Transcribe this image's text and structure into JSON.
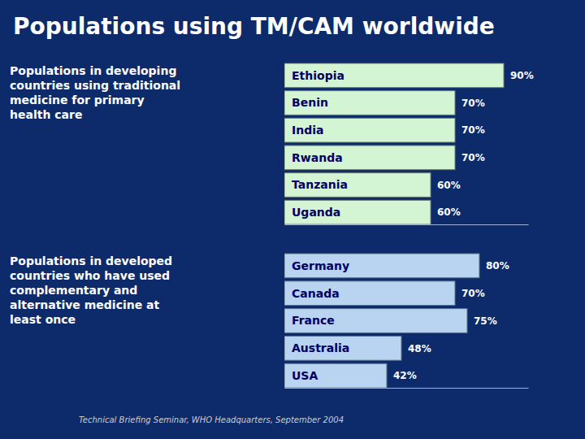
{
  "chart_data": [
    {
      "type": "bar",
      "orientation": "horizontal",
      "title": "Populations using TM/CAM worldwide",
      "subtitle": "Populations in developing\ncountries using traditional\nmedicine for primary\nhealth care",
      "categories": [
        "Ethiopia",
        "Benin",
        "India",
        "Rwanda",
        "Tanzania",
        "Uganda"
      ],
      "values": [
        90,
        70,
        70,
        70,
        60,
        60
      ],
      "value_labels": [
        "90%",
        "70%",
        "70%",
        "70%",
        "60%",
        "60%"
      ],
      "data_labels": true,
      "color": "#d4f5d4",
      "xlim": [
        0,
        100
      ],
      "tick_labels": false
    },
    {
      "type": "bar",
      "orientation": "horizontal",
      "subtitle": "Populations in developed\ncountries who have used\ncomplementary and\nalternative medicine at\nleast once",
      "categories": [
        "Germany",
        "Canada",
        "France",
        "Australia",
        "USA"
      ],
      "values": [
        80,
        70,
        75,
        48,
        42
      ],
      "value_labels": [
        "80%",
        "70%",
        "75%",
        "48%",
        "42%"
      ],
      "data_labels": true,
      "color": "#b8d4f0",
      "xlim": [
        0,
        100
      ],
      "tick_labels": false,
      "annotations": [
        "Technical Briefing Seminar, WHO Headquarters, September 2004"
      ]
    }
  ]
}
